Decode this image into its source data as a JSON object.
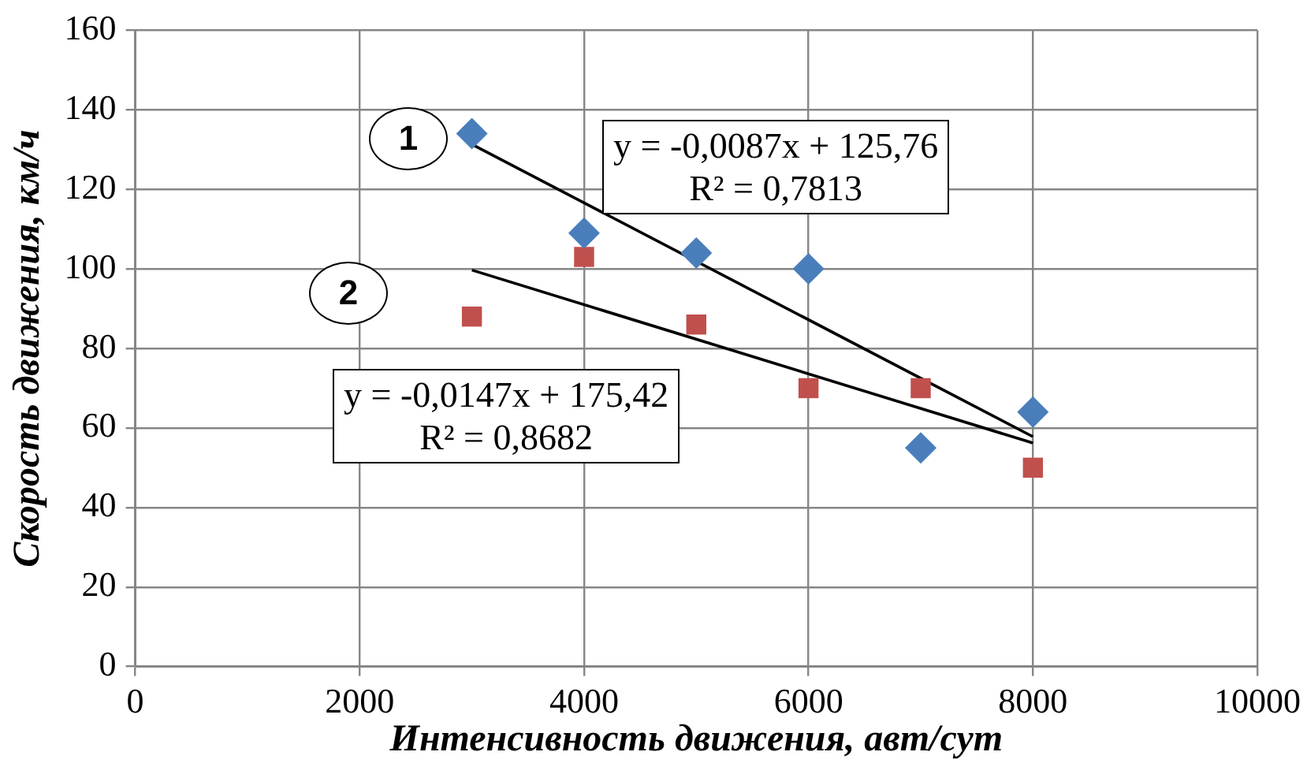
{
  "chart_data": {
    "type": "scatter",
    "xlabel": "Интенсивность движения, авт/сут",
    "ylabel": "Скорость движения, км/ч",
    "xlim": [
      0,
      10000
    ],
    "xticks": [
      0,
      2000,
      4000,
      6000,
      8000,
      10000
    ],
    "ylim": [
      0,
      160
    ],
    "yticks": [
      0,
      20,
      40,
      60,
      80,
      100,
      120,
      140,
      160
    ],
    "grid": true,
    "legend": false,
    "series": [
      {
        "color": "#4a7ebb",
        "marker": "diamond",
        "x": [
          3000,
          4000,
          5000,
          6000,
          7000,
          8000
        ],
        "values": [
          134,
          109,
          104,
          100,
          55,
          64
        ]
      },
      {
        "color": "#c0504d",
        "marker": "square",
        "x": [
          3000,
          4000,
          5000,
          6000,
          7000,
          8000
        ],
        "values": [
          88,
          103,
          86,
          70,
          70,
          50
        ]
      },
      {
        "type": "line",
        "color": "#000000",
        "marker": "none",
        "x": [
          3000,
          8000
        ],
        "values": [
          131.3,
          57.8
        ]
      },
      {
        "type": "line",
        "color": "#000000",
        "marker": "none",
        "x": [
          3000,
          8000
        ],
        "values": [
          99.7,
          56.2
        ]
      }
    ],
    "annotations": [
      "1",
      "2",
      "y = -0,0087x + 125,76\nR² = 0,7813",
      "y = -0,0147x + 175,42\nR² = 0,8682"
    ]
  }
}
